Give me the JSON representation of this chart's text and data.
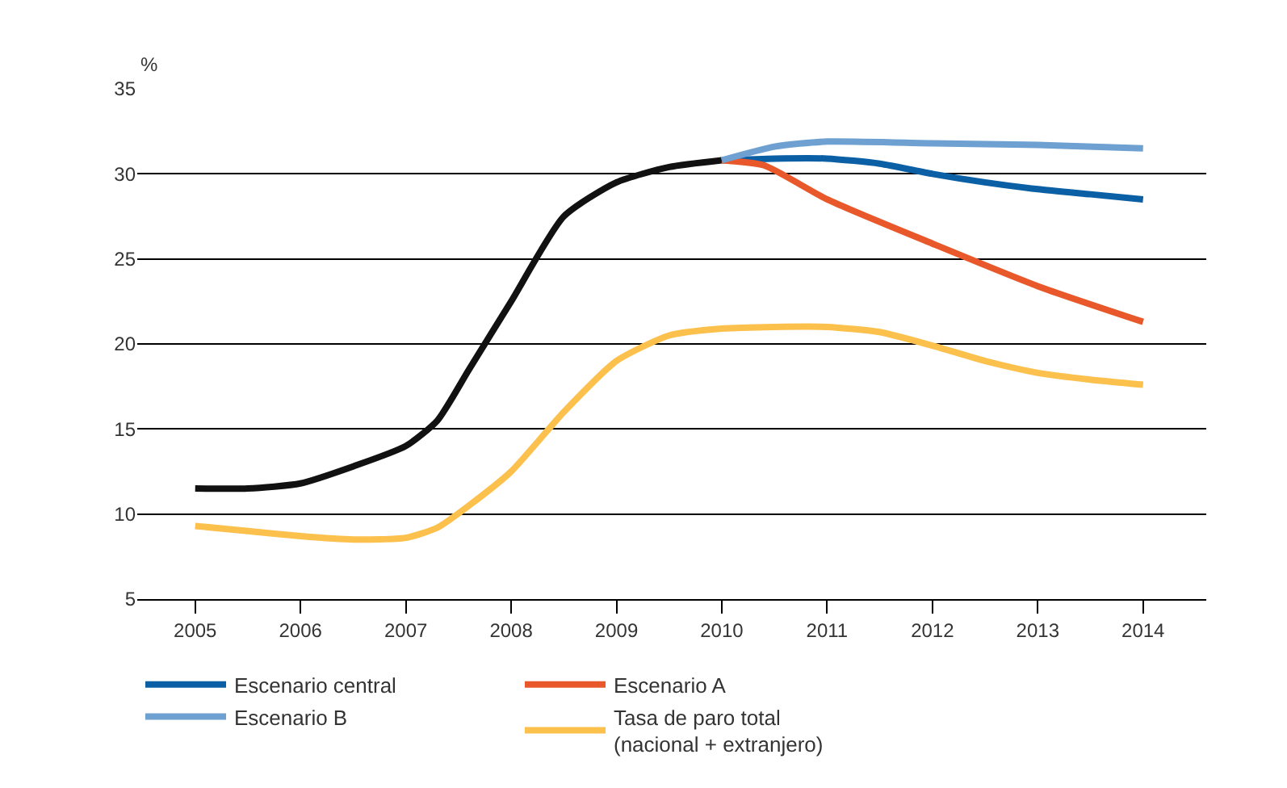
{
  "chart_data": {
    "type": "line",
    "ylabel": "%",
    "xlim": [
      2004.45,
      2014.6
    ],
    "ylim": [
      5,
      35
    ],
    "xticks": [
      2005,
      2006,
      2007,
      2008,
      2009,
      2010,
      2011,
      2012,
      2013,
      2014
    ],
    "yticks": [
      5,
      10,
      15,
      20,
      25,
      30,
      35
    ],
    "grid": "y",
    "legend": "bottom",
    "marker": "none",
    "line_style": "solid",
    "series": [
      {
        "color": "#111111",
        "x": [
          2005,
          2005.5,
          2006,
          2006.5,
          2007,
          2007.3,
          2007.6,
          2008,
          2008.5,
          2009,
          2009.5,
          2010
        ],
        "values": [
          11.5,
          11.5,
          11.8,
          12.8,
          14,
          15.5,
          18.5,
          22.5,
          27.5,
          29.5,
          30.4,
          30.8
        ]
      },
      {
        "name": "Escenario central",
        "color": "#0b5fa5",
        "x": [
          2010,
          2010.5,
          2011,
          2011.5,
          2012,
          2012.5,
          2013,
          2013.5,
          2014
        ],
        "values": [
          30.8,
          30.9,
          30.9,
          30.6,
          30.0,
          29.5,
          29.1,
          28.8,
          28.5
        ]
      },
      {
        "name": "Escenario A",
        "color": "#e8582a",
        "x": [
          2010,
          2010.4,
          2011,
          2012,
          2013,
          2014
        ],
        "values": [
          30.8,
          30.5,
          28.5,
          25.9,
          23.4,
          21.3
        ]
      },
      {
        "name": "Escenario B",
        "color": "#6fa0d2",
        "x": [
          2010,
          2010.5,
          2011,
          2012,
          2013,
          2014
        ],
        "values": [
          30.8,
          31.6,
          31.9,
          31.8,
          31.7,
          31.5
        ]
      },
      {
        "name": "Tasa de paro total\n(nacional + extranjero)",
        "color": "#fcc04c",
        "x": [
          2005,
          2005.5,
          2006,
          2006.5,
          2007,
          2007.3,
          2007.6,
          2008,
          2008.5,
          2009,
          2009.5,
          2010,
          2010.5,
          2011,
          2011.5,
          2012,
          2012.5,
          2013,
          2013.5,
          2014
        ],
        "values": [
          9.3,
          9.0,
          8.7,
          8.5,
          8.6,
          9.2,
          10.5,
          12.5,
          16,
          19,
          20.5,
          20.9,
          21.0,
          21.0,
          20.7,
          19.9,
          19.0,
          18.3,
          17.9,
          17.6
        ]
      }
    ]
  }
}
